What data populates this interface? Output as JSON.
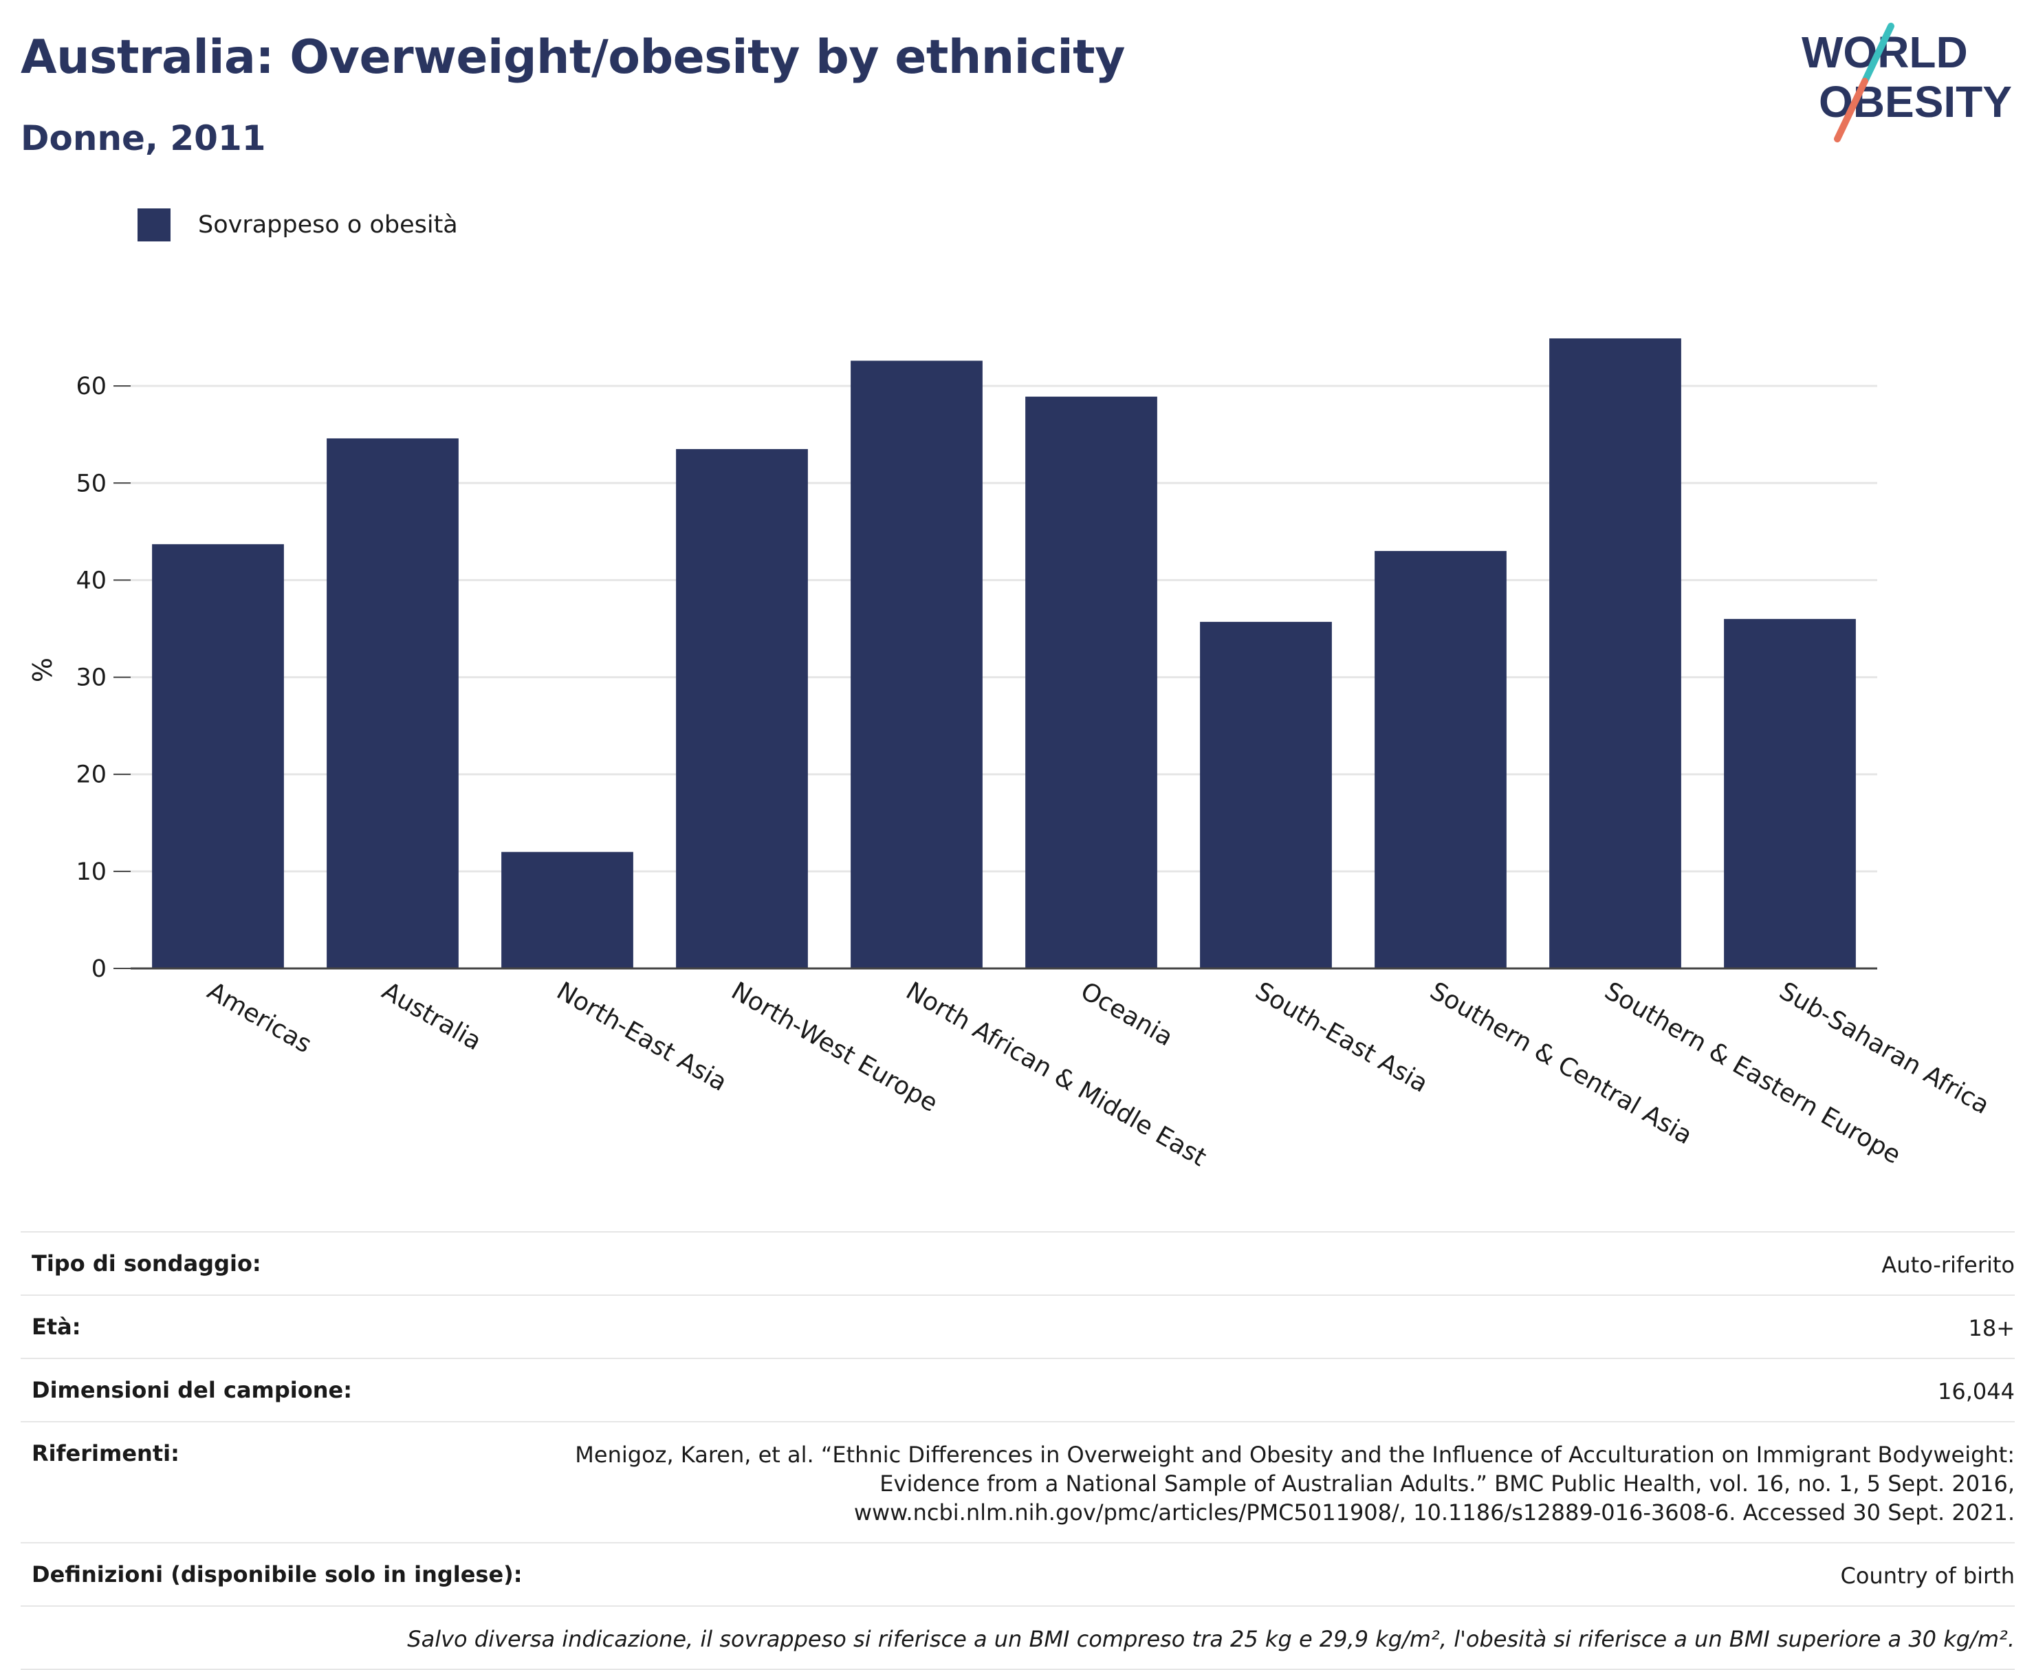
{
  "header": {
    "title": "Australia: Overweight/obesity by ethnicity",
    "subtitle": "Donne, 2011"
  },
  "logo": {
    "line1": "WORLD",
    "line2": "OBESITY",
    "accent_teal": "#3bbfbf",
    "accent_coral": "#e8735a"
  },
  "legend": {
    "label": "Sovrappeso o obesità",
    "color": "#2a3560"
  },
  "chart_data": {
    "type": "bar",
    "categories": [
      "Americas",
      "Australia",
      "North-East Asia",
      "North-West Europe",
      "North African & Middle East",
      "Oceania",
      "South-East Asia",
      "Southern & Central Asia",
      "Southern & Eastern Europe",
      "Sub-Saharan Africa"
    ],
    "series": [
      {
        "name": "Sovrappeso o obesità",
        "values": [
          43.7,
          54.6,
          12.0,
          53.5,
          62.6,
          58.9,
          35.7,
          43.0,
          64.9,
          36.0
        ],
        "color": "#2a3560"
      }
    ],
    "ylabel": "%",
    "ylim": [
      0,
      70
    ],
    "yticks": [
      0,
      10,
      20,
      30,
      40,
      50,
      60
    ],
    "grid": true,
    "legend_position": "top-left"
  },
  "info": {
    "survey_type_label": "Tipo di sondaggio:",
    "survey_type_value": "Auto-riferito",
    "age_label": "Età:",
    "age_value": "18+",
    "sample_label": "Dimensioni del campione:",
    "sample_value": "16,044",
    "references_label": "Riferimenti:",
    "references_value": "Menigoz, Karen, et al. “Ethnic Differences in Overweight and Obesity and the Influence of Acculturation on Immigrant Bodyweight:\nEvidence from a National Sample of Australian Adults.” BMC Public Health, vol. 16, no. 1, 5 Sept. 2016,\nwww.ncbi.nlm.nih.gov/pmc/articles/PMC5011908/, 10.1186/s12889-016-3608-6. Accessed 30 Sept. 2021.",
    "definitions_label": "Definizioni (disponibile solo in inglese):",
    "definitions_value": "Country of birth",
    "note": "Salvo diversa indicazione, il sovrappeso si riferisce a un BMI compreso tra 25 kg e 29,9 kg/m², l'obesità si riferisce a un BMI superiore a 30 kg/m²."
  }
}
